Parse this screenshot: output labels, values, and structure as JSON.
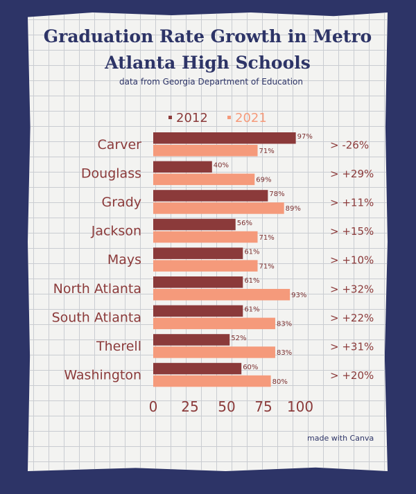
{
  "title_line1": "Graduation Rate Growth in Metro",
  "title_line2": "Atlanta High Schools",
  "subtitle": "data from Georgia Department of Education",
  "credit": "made with Canva",
  "chart_data": {
    "type": "bar",
    "orientation": "horizontal",
    "categories": [
      "Carver",
      "Douglass",
      "Grady",
      "Jackson",
      "Mays",
      "North Atlanta",
      "South Atlanta",
      "Therell",
      "Washington"
    ],
    "series": [
      {
        "name": "2012",
        "color": "#8b3a3a",
        "values": [
          97,
          40,
          78,
          56,
          61,
          61,
          61,
          52,
          60
        ],
        "labels": [
          "97%",
          "40%",
          "78%",
          "56%",
          "61%",
          "61%",
          "61%",
          "52%",
          "60%"
        ]
      },
      {
        "name": "2021",
        "color": "#f59a7b",
        "values": [
          71,
          69,
          89,
          71,
          71,
          93,
          83,
          83,
          80
        ],
        "labels": [
          "71%",
          "69%",
          "89%",
          "71%",
          "71%",
          "93%",
          "83%",
          "83%",
          "80%"
        ]
      }
    ],
    "change_labels": [
      "> -26%",
      "> +29%",
      "> +11%",
      "> +15%",
      "> +10%",
      "> +32%",
      "> +22%",
      "> +31%",
      "> +20%"
    ],
    "xticks": [
      "0",
      "25",
      "50",
      "75",
      "100"
    ],
    "xlim": [
      0,
      100
    ],
    "legend_position": "top",
    "grid": false
  }
}
